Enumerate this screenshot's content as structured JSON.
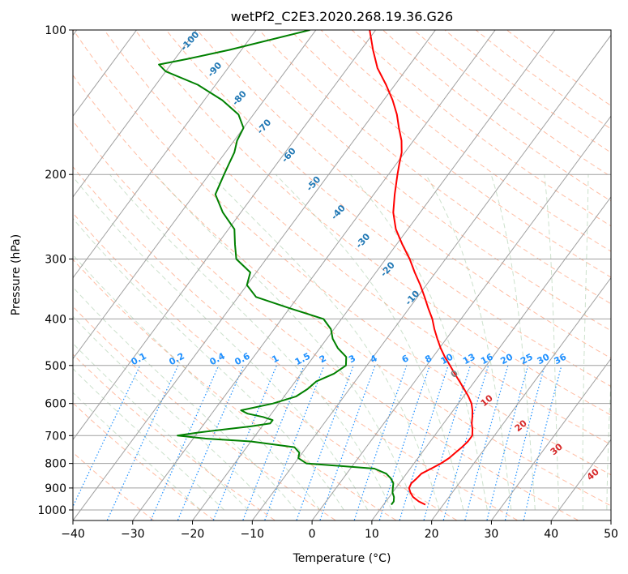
{
  "chart_data": {
    "type": "line",
    "diagram": "skew-t log-p",
    "title": "wetPf2_C2E3.2020.268.19.36.G26",
    "xlabel": "Temperature (°C)",
    "ylabel": "Pressure (hPa)",
    "xlim": [
      -40,
      50
    ],
    "ylim": [
      1050,
      100
    ],
    "y_scale": "log",
    "grid": true,
    "x_ticks": [
      -40,
      -30,
      -20,
      -10,
      0,
      10,
      20,
      30,
      40,
      50
    ],
    "y_ticks": [
      100,
      200,
      300,
      400,
      500,
      600,
      700,
      800,
      900,
      1000
    ],
    "series": [
      {
        "id": "temperature",
        "color": "#ff0000",
        "points": [
          [
            975,
            17
          ],
          [
            960,
            15.5
          ],
          [
            940,
            14
          ],
          [
            920,
            13
          ],
          [
            900,
            12.2
          ],
          [
            880,
            12
          ],
          [
            860,
            12.3
          ],
          [
            840,
            12.5
          ],
          [
            820,
            13.5
          ],
          [
            800,
            14.5
          ],
          [
            780,
            15.2
          ],
          [
            760,
            15.6
          ],
          [
            740,
            16
          ],
          [
            720,
            16.3
          ],
          [
            700,
            16.3
          ],
          [
            680,
            15.6
          ],
          [
            660,
            14.7
          ],
          [
            640,
            14
          ],
          [
            620,
            13.2
          ],
          [
            600,
            12.2
          ],
          [
            580,
            10.8
          ],
          [
            560,
            9.2
          ],
          [
            540,
            7.5
          ],
          [
            520,
            5.7
          ],
          [
            500,
            3.9
          ],
          [
            480,
            2
          ],
          [
            460,
            0.2
          ],
          [
            440,
            -1.5
          ],
          [
            420,
            -3.2
          ],
          [
            400,
            -4.8
          ],
          [
            380,
            -6.8
          ],
          [
            360,
            -8.8
          ],
          [
            340,
            -11
          ],
          [
            320,
            -13.5
          ],
          [
            300,
            -16
          ],
          [
            280,
            -19
          ],
          [
            260,
            -22
          ],
          [
            240,
            -24.5
          ],
          [
            220,
            -26.5
          ],
          [
            200,
            -28.5
          ],
          [
            190,
            -29.5
          ],
          [
            180,
            -30.5
          ],
          [
            170,
            -32
          ],
          [
            160,
            -34
          ],
          [
            150,
            -36
          ],
          [
            140,
            -38.5
          ],
          [
            130,
            -41.5
          ],
          [
            120,
            -45
          ],
          [
            110,
            -48
          ],
          [
            100,
            -51
          ]
        ]
      },
      {
        "id": "dewpoint",
        "color": "#008000",
        "points": [
          [
            975,
            11.3
          ],
          [
            960,
            11.3
          ],
          [
            940,
            10.8
          ],
          [
            920,
            10
          ],
          [
            900,
            9.5
          ],
          [
            880,
            9
          ],
          [
            860,
            8
          ],
          [
            840,
            6.6
          ],
          [
            820,
            4
          ],
          [
            810,
            -2
          ],
          [
            800,
            -8
          ],
          [
            780,
            -10
          ],
          [
            760,
            -10.5
          ],
          [
            740,
            -12
          ],
          [
            720,
            -20
          ],
          [
            710,
            -28
          ],
          [
            700,
            -33
          ],
          [
            690,
            -30
          ],
          [
            680,
            -26
          ],
          [
            670,
            -22
          ],
          [
            660,
            -19
          ],
          [
            650,
            -19
          ],
          [
            640,
            -21
          ],
          [
            630,
            -24
          ],
          [
            620,
            -25.5
          ],
          [
            600,
            -21
          ],
          [
            580,
            -18
          ],
          [
            560,
            -17
          ],
          [
            540,
            -16.5
          ],
          [
            520,
            -14.5
          ],
          [
            500,
            -13.5
          ],
          [
            480,
            -14.5
          ],
          [
            460,
            -17
          ],
          [
            440,
            -19
          ],
          [
            420,
            -20.5
          ],
          [
            400,
            -23
          ],
          [
            380,
            -30
          ],
          [
            360,
            -37
          ],
          [
            340,
            -40
          ],
          [
            320,
            -41
          ],
          [
            300,
            -45
          ],
          [
            280,
            -47
          ],
          [
            260,
            -49
          ],
          [
            240,
            -53
          ],
          [
            220,
            -56.5
          ],
          [
            200,
            -57.5
          ],
          [
            190,
            -58
          ],
          [
            180,
            -58.5
          ],
          [
            170,
            -59.5
          ],
          [
            160,
            -60
          ],
          [
            150,
            -62.5
          ],
          [
            140,
            -67
          ],
          [
            130,
            -73
          ],
          [
            122,
            -80
          ],
          [
            118,
            -82
          ],
          [
            115,
            -78
          ],
          [
            110,
            -72
          ],
          [
            100,
            -61
          ]
        ]
      }
    ],
    "dry_adiabat_labels": [
      "-100",
      "-90",
      "-80",
      "-70",
      "-60",
      "-50",
      "-40",
      "-30",
      "-20",
      "-10"
    ],
    "moist_adiabat_labels": [
      "0",
      "10",
      "20",
      "30",
      "40"
    ],
    "mixing_ratio_labels": [
      "0.1",
      "0.2",
      "0.4",
      "0.6",
      "1",
      "1.5",
      "2",
      "3",
      "4",
      "6",
      "8",
      "10",
      "13",
      "16",
      "20",
      "25",
      "30",
      "36"
    ],
    "colors": {
      "isotherm": "#a0a0a0",
      "isobar": "#a0a0a0",
      "dry_adiabat": "#ffa07a",
      "moist_adiabat": "#8fbc8f",
      "mixing_ratio": "#1e90ff",
      "dry_label": "#1f77b4",
      "moist_label": "#d62728",
      "zero_label": "#808080"
    }
  }
}
